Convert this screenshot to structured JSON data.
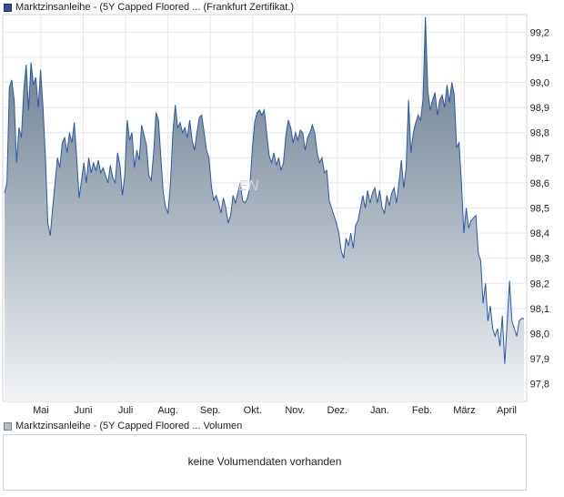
{
  "legend_main": {
    "label": "Marktzinsanleihe - (5Y Capped Floored ... (Frankfurt Zertifikat.)",
    "color": "#2b4f8f"
  },
  "legend_volume": {
    "label": "Marktzinsanleihe - (5Y Capped Floored ... Volumen",
    "color": "#b8bec6"
  },
  "watermark": "EN",
  "volume_message": "keine Volumendaten vorhanden",
  "chart_data": {
    "type": "area",
    "title": "",
    "xlabel": "",
    "ylabel": "",
    "x_ticks": [
      "Mai",
      "Juni",
      "Juli",
      "Aug.",
      "Sep.",
      "Okt.",
      "Nov.",
      "Dez.",
      "Jan.",
      "Feb.",
      "März",
      "April"
    ],
    "y_ticks": [
      "97,8",
      "97,9",
      "98,0",
      "98,1",
      "98,2",
      "98,3",
      "98,4",
      "98,5",
      "98,6",
      "98,7",
      "98,8",
      "98,9",
      "99,0",
      "99,1",
      "99,2"
    ],
    "ylim": [
      97.73,
      99.27
    ],
    "grid": true,
    "line_color": "#2b57a8",
    "fill_top_color": "#5f7386",
    "fill_bottom_color": "#f1f3f6",
    "series": [
      {
        "values": [
          98.56,
          98.6,
          98.98,
          99.01,
          98.93,
          98.68,
          98.82,
          98.78,
          98.97,
          99.07,
          98.89,
          99.08,
          98.99,
          99.02,
          98.9,
          99.05,
          98.9,
          98.7,
          98.44,
          98.39,
          98.5,
          98.6,
          98.7,
          98.66,
          98.76,
          98.78,
          98.72,
          98.8,
          98.76,
          98.84,
          98.7,
          98.54,
          98.61,
          98.68,
          98.6,
          98.7,
          98.64,
          98.68,
          98.65,
          98.69,
          98.64,
          98.66,
          98.63,
          98.6,
          98.67,
          98.62,
          98.6,
          98.72,
          98.67,
          98.55,
          98.63,
          98.85,
          98.77,
          98.8,
          98.66,
          98.73,
          98.69,
          98.83,
          98.79,
          98.75,
          98.63,
          98.61,
          98.72,
          98.88,
          98.85,
          98.7,
          98.56,
          98.5,
          98.48,
          98.6,
          98.8,
          98.91,
          98.82,
          98.84,
          98.8,
          98.82,
          98.78,
          98.85,
          98.77,
          98.73,
          98.8,
          98.86,
          98.87,
          98.8,
          98.73,
          98.7,
          98.59,
          98.53,
          98.55,
          98.52,
          98.48,
          98.54,
          98.5,
          98.44,
          98.47,
          98.55,
          98.52,
          98.56,
          98.6,
          98.53,
          98.52,
          98.54,
          98.58,
          98.73,
          98.84,
          98.88,
          98.89,
          98.87,
          98.89,
          98.8,
          98.71,
          98.68,
          98.72,
          98.67,
          98.7,
          98.65,
          98.68,
          98.79,
          98.85,
          98.82,
          98.76,
          98.8,
          98.77,
          98.81,
          98.8,
          98.73,
          98.78,
          98.8,
          98.83,
          98.8,
          98.72,
          98.68,
          98.7,
          98.64,
          98.65,
          98.53,
          98.5,
          98.47,
          98.44,
          98.4,
          98.33,
          98.3,
          98.38,
          98.35,
          98.4,
          98.34,
          98.43,
          98.45,
          98.5,
          98.55,
          98.5,
          98.57,
          98.52,
          98.56,
          98.58,
          98.52,
          98.57,
          98.5,
          98.48,
          98.55,
          98.51,
          98.56,
          98.58,
          98.52,
          98.6,
          98.69,
          98.58,
          98.66,
          98.93,
          98.72,
          98.8,
          98.84,
          98.87,
          98.85,
          98.93,
          99.26,
          98.97,
          98.89,
          98.93,
          98.96,
          98.87,
          98.93,
          98.95,
          98.9,
          98.99,
          98.92,
          99.0,
          98.95,
          98.74,
          98.76,
          98.6,
          98.4,
          98.5,
          98.42,
          98.45,
          98.46,
          98.47,
          98.32,
          98.29,
          98.12,
          98.2,
          98.05,
          98.11,
          98.02,
          97.99,
          98.02,
          97.95,
          98.07,
          97.88,
          98.04,
          98.21,
          98.05,
          98.02,
          97.99,
          98.05,
          98.06,
          98.06
        ]
      }
    ]
  }
}
